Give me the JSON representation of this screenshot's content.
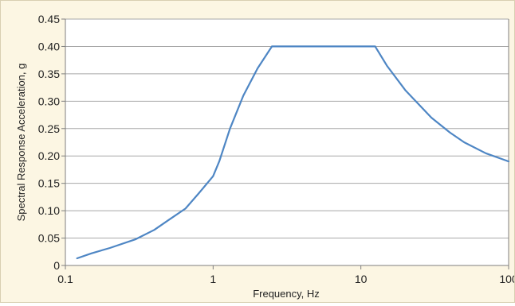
{
  "chart_data": {
    "type": "line",
    "title": "",
    "xlabel": "Frequency, Hz",
    "ylabel": "Spectral Response Acceleration, g",
    "x_scale": "log",
    "xlim": [
      0.1,
      100
    ],
    "ylim": [
      0,
      0.45
    ],
    "x_ticks": [
      "0.1",
      "1",
      "10",
      "100"
    ],
    "y_ticks": [
      "0",
      "0.05",
      "0.10",
      "0.15",
      "0.20",
      "0.25",
      "0.30",
      "0.35",
      "0.40",
      "0.45"
    ],
    "grid": "horizontal",
    "series": [
      {
        "color": "#4e86c4",
        "x": [
          0.12,
          0.15,
          0.2,
          0.3,
          0.4,
          0.5,
          0.65,
          0.8,
          1.0,
          1.1,
          1.3,
          1.6,
          2.0,
          2.5,
          5.0,
          8.0,
          12.5,
          15,
          20,
          30,
          40,
          50,
          70,
          100
        ],
        "y": [
          0.013,
          0.022,
          0.032,
          0.048,
          0.065,
          0.083,
          0.104,
          0.132,
          0.163,
          0.19,
          0.25,
          0.31,
          0.36,
          0.4,
          0.4,
          0.4,
          0.4,
          0.365,
          0.32,
          0.27,
          0.243,
          0.225,
          0.205,
          0.19
        ]
      }
    ]
  },
  "colors": {
    "background": "#fcf6e3",
    "plot_area": "#ffffff",
    "gridline": "#a8a8a8",
    "axis": "#7f7f7f",
    "line": "#4e86c4"
  }
}
